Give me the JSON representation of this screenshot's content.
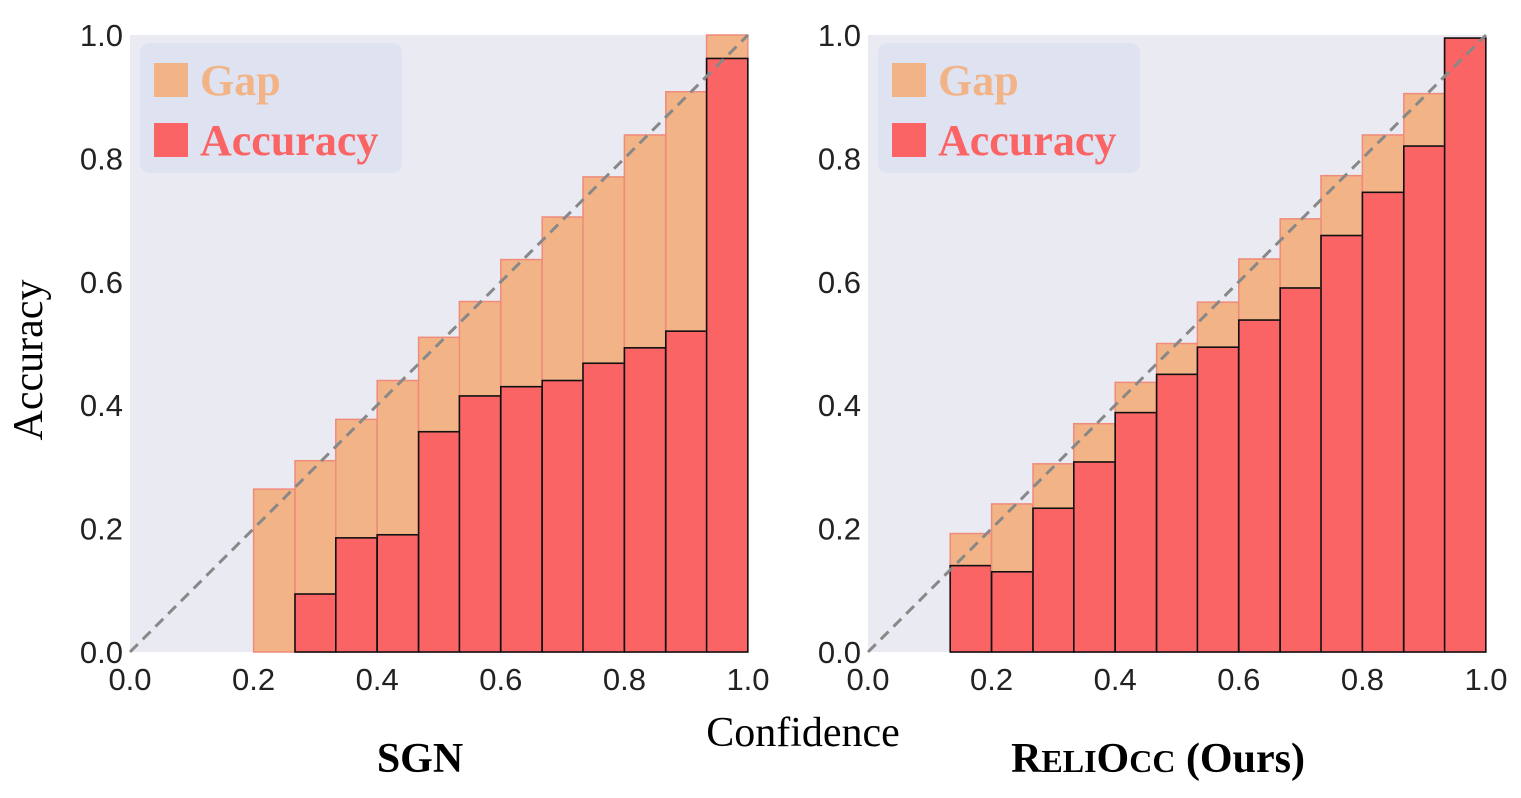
{
  "shared": {
    "ylabel": "Accuracy",
    "xlabel": "Confidence",
    "colors": {
      "background": "#eaeaf2",
      "gap": "#f2b487",
      "accuracy": "#fb6465",
      "gap_edge": "#f08a7a",
      "acc_edge": "#111111",
      "diagonal": "#888888",
      "legend_bg": "#dde2f0"
    }
  },
  "chart_data": [
    {
      "type": "bar",
      "title": "SGN",
      "xlim": [
        0,
        1
      ],
      "ylim": [
        0,
        1
      ],
      "x_ticks": [
        "0.0",
        "0.2",
        "0.4",
        "0.6",
        "0.8",
        "1.0"
      ],
      "y_ticks": [
        "0.0",
        "0.2",
        "0.4",
        "0.6",
        "0.8",
        "1.0"
      ],
      "legend": [
        "Gap",
        "Accuracy"
      ],
      "legend_position": "top-left",
      "bin_width": 0.0667,
      "bin_starts": [
        0.2,
        0.267,
        0.333,
        0.4,
        0.467,
        0.533,
        0.6,
        0.667,
        0.733,
        0.8,
        0.867,
        0.933
      ],
      "gap_top": [
        0.264,
        0.31,
        0.377,
        0.44,
        0.51,
        0.568,
        0.636,
        0.705,
        0.77,
        0.838,
        0.908,
        1.0
      ],
      "accuracy": [
        0.0,
        0.094,
        0.185,
        0.19,
        0.357,
        0.415,
        0.43,
        0.44,
        0.468,
        0.493,
        0.52,
        0.962
      ]
    },
    {
      "type": "bar",
      "title_parts": [
        "R",
        "ELI",
        "O",
        "CC",
        " (Ours)"
      ],
      "xlim": [
        0,
        1
      ],
      "ylim": [
        0,
        1
      ],
      "x_ticks": [
        "0.0",
        "0.2",
        "0.4",
        "0.6",
        "0.8",
        "1.0"
      ],
      "y_ticks": [
        "0.0",
        "0.2",
        "0.4",
        "0.6",
        "0.8",
        "1.0"
      ],
      "legend": [
        "Gap",
        "Accuracy"
      ],
      "legend_position": "top-left",
      "bin_width": 0.0667,
      "bin_starts": [
        0.133,
        0.2,
        0.267,
        0.333,
        0.4,
        0.467,
        0.533,
        0.6,
        0.667,
        0.733,
        0.8,
        0.867,
        0.933
      ],
      "gap_top": [
        0.192,
        0.24,
        0.305,
        0.37,
        0.437,
        0.5,
        0.567,
        0.637,
        0.702,
        0.772,
        0.838,
        0.905,
        0.995
      ],
      "accuracy": [
        0.14,
        0.13,
        0.233,
        0.308,
        0.388,
        0.45,
        0.494,
        0.538,
        0.59,
        0.675,
        0.745,
        0.82,
        0.995
      ]
    }
  ]
}
